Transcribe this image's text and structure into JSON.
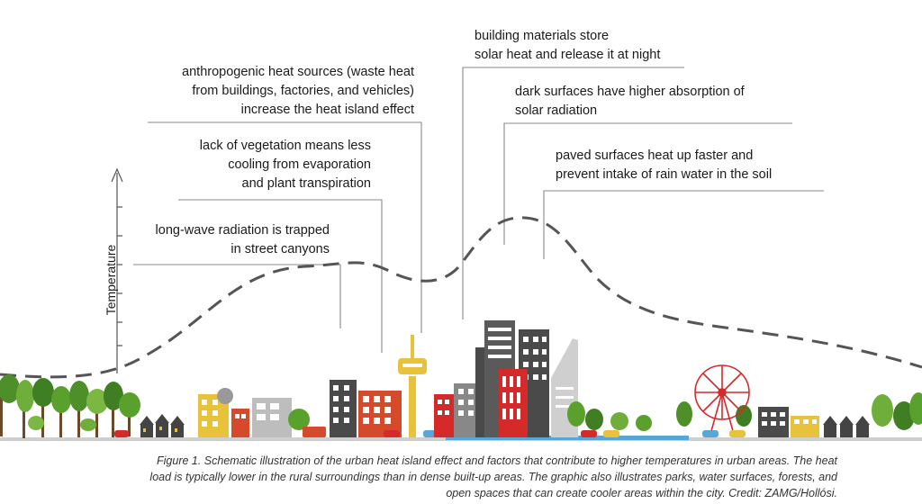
{
  "axis": {
    "ylabel": "Temperature"
  },
  "annotations": [
    {
      "id": "buildings",
      "text": "building materials store\nsolar heat and release it at night"
    },
    {
      "id": "anthropogenic",
      "text": "anthropogenic heat sources (waste heat\nfrom buildings, factories, and vehicles)\nincrease the heat island effect"
    },
    {
      "id": "dark",
      "text": "dark surfaces have higher absorption of\nsolar radiation"
    },
    {
      "id": "vegetation",
      "text": "lack of vegetation means less\ncooling from evaporation\nand plant transpiration"
    },
    {
      "id": "paved",
      "text": "paved surfaces heat up faster and\nprevent intake of rain water in the soil"
    },
    {
      "id": "longwave",
      "text": "long-wave radiation is trapped\nin street canyons"
    }
  ],
  "caption": "Figure 1. Schematic illustration of the urban heat island effect and factors that contribute to higher temperatures in urban areas. The heat load is typically lower in the rural surroundings than in dense built-up areas. The graphic also illustrates parks, water surfaces, forests, and open spaces that can create cooler areas within the city. Credit: ZAMG/Hollósi.",
  "colors": {
    "curve": "#555555",
    "leader": "#888888",
    "red": "#d42a2a",
    "dark": "#4a4a4a",
    "yellow": "#e8c23a",
    "tree": "#5aa02c",
    "water": "#5aa5d8"
  }
}
